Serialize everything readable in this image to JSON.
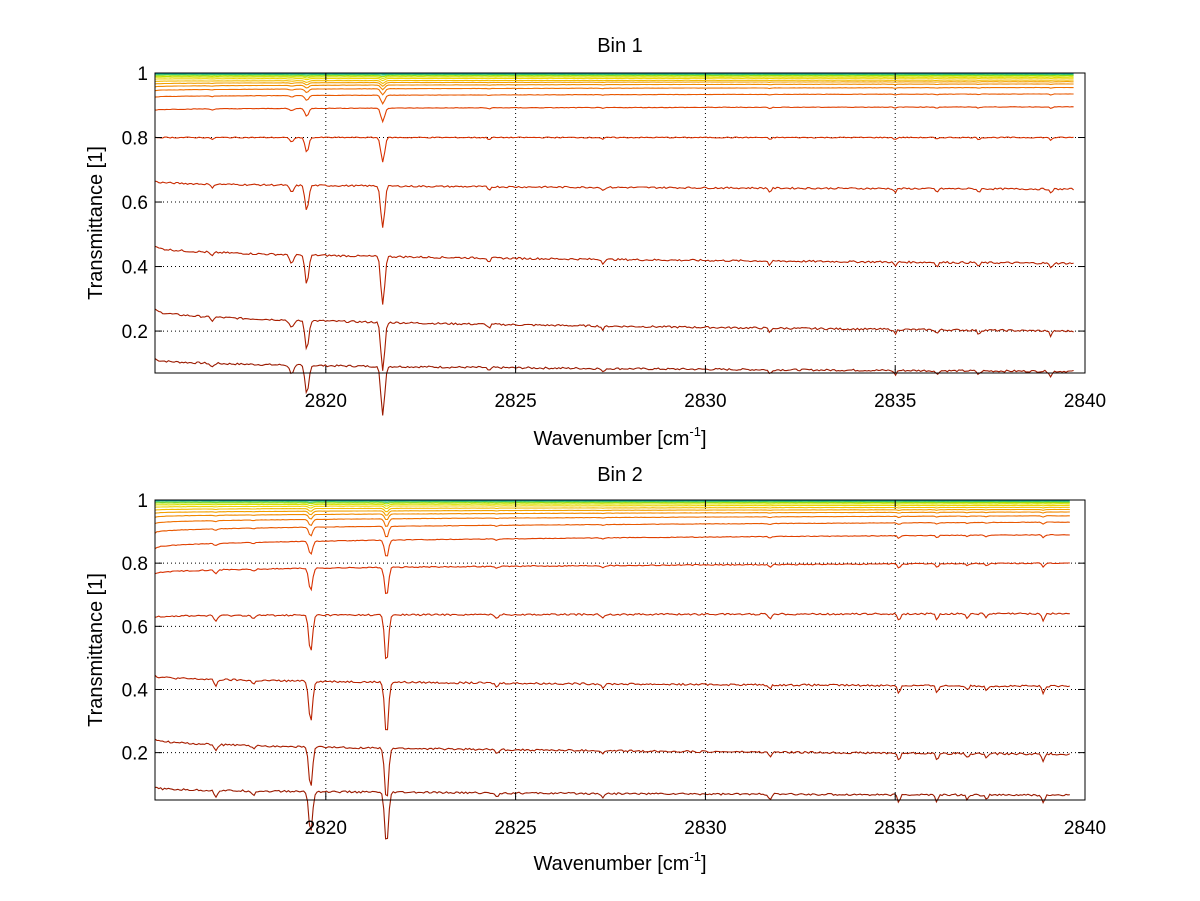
{
  "chart_data": [
    {
      "type": "line",
      "title": "Bin 1",
      "xlabel": "Wavenumber [cm",
      "xlabel_sup": "-1",
      "xlabel_close": "]",
      "ylabel": "Transmittance [1]",
      "xlim": [
        2815.5,
        2840
      ],
      "ylim": [
        0.07,
        1
      ],
      "xticks": [
        2820,
        2825,
        2830,
        2835,
        2840
      ],
      "xtick_labels": [
        "2820",
        "2825",
        "2830",
        "2835",
        "2840"
      ],
      "yticks": [
        0.2,
        0.4,
        0.6,
        0.8,
        1
      ],
      "ytick_labels": [
        "0.2",
        "0.4",
        "0.6",
        "0.8",
        "1"
      ],
      "grid": true,
      "x_range": [
        2815.5,
        2839.7
      ],
      "series": [
        {
          "start": 0.115,
          "end": 0.075,
          "color": "#9a1a00"
        },
        {
          "start": 0.27,
          "end": 0.2,
          "color": "#a81e00"
        },
        {
          "start": 0.465,
          "end": 0.41,
          "color": "#b82200"
        },
        {
          "start": 0.665,
          "end": 0.64,
          "color": "#c82a00"
        },
        {
          "start": 0.8,
          "end": 0.8,
          "color": "#d83000"
        },
        {
          "start": 0.885,
          "end": 0.895,
          "color": "#e04000"
        },
        {
          "start": 0.925,
          "end": 0.935,
          "color": "#e85800"
        },
        {
          "start": 0.945,
          "end": 0.955,
          "color": "#ef7000"
        },
        {
          "start": 0.957,
          "end": 0.966,
          "color": "#f08a00"
        },
        {
          "start": 0.966,
          "end": 0.973,
          "color": "#f2a000"
        },
        {
          "start": 0.974,
          "end": 0.978,
          "color": "#f2bb00"
        },
        {
          "start": 0.981,
          "end": 0.984,
          "color": "#eed400"
        },
        {
          "start": 0.987,
          "end": 0.988,
          "color": "#d8e200"
        },
        {
          "start": 0.991,
          "end": 0.992,
          "color": "#a8e000"
        },
        {
          "start": 0.995,
          "end": 0.995,
          "color": "#40c860"
        },
        {
          "start": 0.998,
          "end": 0.998,
          "color": "#0aa8a8"
        }
      ],
      "absorption_lines": [
        {
          "x": 2819.5,
          "depth": 0.09,
          "width": 0.07
        },
        {
          "x": 2821.5,
          "depth": 0.15,
          "width": 0.07
        },
        {
          "x": 2819.1,
          "depth": 0.025,
          "width": 0.08
        },
        {
          "x": 2817.0,
          "depth": 0.012,
          "width": 0.06
        },
        {
          "x": 2824.3,
          "depth": 0.012,
          "width": 0.05
        },
        {
          "x": 2827.3,
          "depth": 0.012,
          "width": 0.05
        },
        {
          "x": 2831.7,
          "depth": 0.014,
          "width": 0.05
        },
        {
          "x": 2835.0,
          "depth": 0.014,
          "width": 0.05
        },
        {
          "x": 2836.1,
          "depth": 0.012,
          "width": 0.05
        },
        {
          "x": 2837.2,
          "depth": 0.012,
          "width": 0.05
        },
        {
          "x": 2839.1,
          "depth": 0.016,
          "width": 0.05
        }
      ]
    },
    {
      "type": "line",
      "title": "Bin 2",
      "xlabel": "Wavenumber [cm",
      "xlabel_sup": "-1",
      "xlabel_close": "]",
      "ylabel": "Transmittance [1]",
      "xlim": [
        2815.5,
        2840
      ],
      "ylim": [
        0.05,
        1
      ],
      "xticks": [
        2820,
        2825,
        2830,
        2835,
        2840
      ],
      "xtick_labels": [
        "2820",
        "2825",
        "2830",
        "2835",
        "2840"
      ],
      "yticks": [
        0.2,
        0.4,
        0.6,
        0.8,
        1
      ],
      "ytick_labels": [
        "0.2",
        "0.4",
        "0.6",
        "0.8",
        "1"
      ],
      "grid": true,
      "x_range": [
        2815.5,
        2839.6
      ],
      "series": [
        {
          "start": 0.09,
          "end": 0.065,
          "color": "#9a1a00"
        },
        {
          "start": 0.245,
          "end": 0.195,
          "color": "#a81e00"
        },
        {
          "start": 0.445,
          "end": 0.41,
          "color": "#b82200"
        },
        {
          "start": 0.63,
          "end": 0.64,
          "color": "#c82a00"
        },
        {
          "start": 0.765,
          "end": 0.8,
          "color": "#d83000"
        },
        {
          "start": 0.845,
          "end": 0.89,
          "color": "#e04000"
        },
        {
          "start": 0.895,
          "end": 0.93,
          "color": "#e85800"
        },
        {
          "start": 0.925,
          "end": 0.95,
          "color": "#ef7000"
        },
        {
          "start": 0.945,
          "end": 0.962,
          "color": "#f08a00"
        },
        {
          "start": 0.958,
          "end": 0.97,
          "color": "#f2a000"
        },
        {
          "start": 0.968,
          "end": 0.977,
          "color": "#f2bb00"
        },
        {
          "start": 0.977,
          "end": 0.983,
          "color": "#eed400"
        },
        {
          "start": 0.984,
          "end": 0.988,
          "color": "#d8e200"
        },
        {
          "start": 0.99,
          "end": 0.992,
          "color": "#a8e000"
        },
        {
          "start": 0.994,
          "end": 0.995,
          "color": "#40c860"
        },
        {
          "start": 0.998,
          "end": 0.998,
          "color": "#0aa8a8"
        }
      ],
      "absorption_lines": [
        {
          "x": 2819.6,
          "depth": 0.13,
          "width": 0.07
        },
        {
          "x": 2821.6,
          "depth": 0.17,
          "width": 0.07
        },
        {
          "x": 2817.1,
          "depth": 0.02,
          "width": 0.06
        },
        {
          "x": 2818.1,
          "depth": 0.012,
          "width": 0.06
        },
        {
          "x": 2824.5,
          "depth": 0.014,
          "width": 0.05
        },
        {
          "x": 2827.3,
          "depth": 0.012,
          "width": 0.05
        },
        {
          "x": 2831.7,
          "depth": 0.016,
          "width": 0.05
        },
        {
          "x": 2835.1,
          "depth": 0.025,
          "width": 0.05
        },
        {
          "x": 2836.1,
          "depth": 0.022,
          "width": 0.05
        },
        {
          "x": 2836.9,
          "depth": 0.014,
          "width": 0.05
        },
        {
          "x": 2837.4,
          "depth": 0.014,
          "width": 0.05
        },
        {
          "x": 2838.9,
          "depth": 0.025,
          "width": 0.05
        }
      ]
    }
  ]
}
